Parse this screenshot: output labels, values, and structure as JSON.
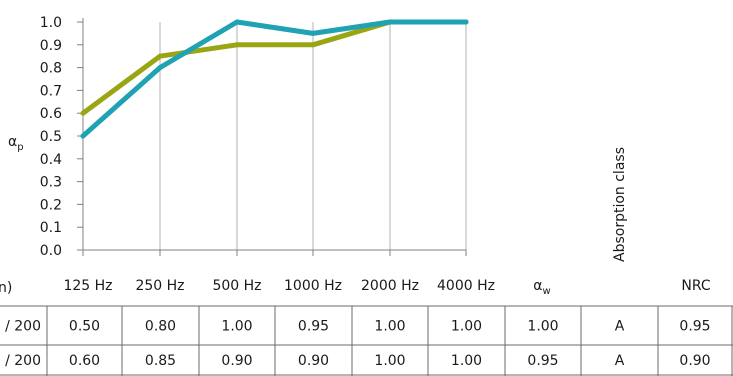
{
  "chart_data": {
    "type": "line",
    "categories": [
      "125 Hz",
      "250 Hz",
      "500 Hz",
      "1000 Hz",
      "2000 Hz",
      "4000 Hz"
    ],
    "ylabel": "αp",
    "ylim": [
      0,
      1.0
    ],
    "yticks": [
      "0.0",
      "0.1",
      "0.2",
      "0.3",
      "0.4",
      "0.5",
      "0.6",
      "0.7",
      "0.8",
      "0.9",
      "1.0"
    ],
    "grid": true,
    "series": [
      {
        "values": [
          0.5,
          0.8,
          1.0,
          0.95,
          1.0,
          1.0
        ],
        "color": "#1fa2b3"
      },
      {
        "values": [
          0.6,
          0.85,
          0.9,
          0.9,
          1.0,
          1.0
        ],
        "color": "#9aa514"
      }
    ]
  },
  "table": {
    "row_header_label": "n)",
    "columns": [
      "125 Hz",
      "250 Hz",
      "500 Hz",
      "1000 Hz",
      "2000 Hz",
      "4000 Hz",
      "αw",
      "Absorption class",
      "NRC"
    ],
    "rows": [
      {
        "label": "/ 200",
        "cells": [
          "0.50",
          "0.80",
          "1.00",
          "0.95",
          "1.00",
          "1.00",
          "1.00",
          "A",
          "0.95"
        ]
      },
      {
        "label": "/ 200",
        "cells": [
          "0.60",
          "0.85",
          "0.90",
          "0.90",
          "1.00",
          "1.00",
          "0.95",
          "A",
          "0.90"
        ]
      }
    ]
  }
}
